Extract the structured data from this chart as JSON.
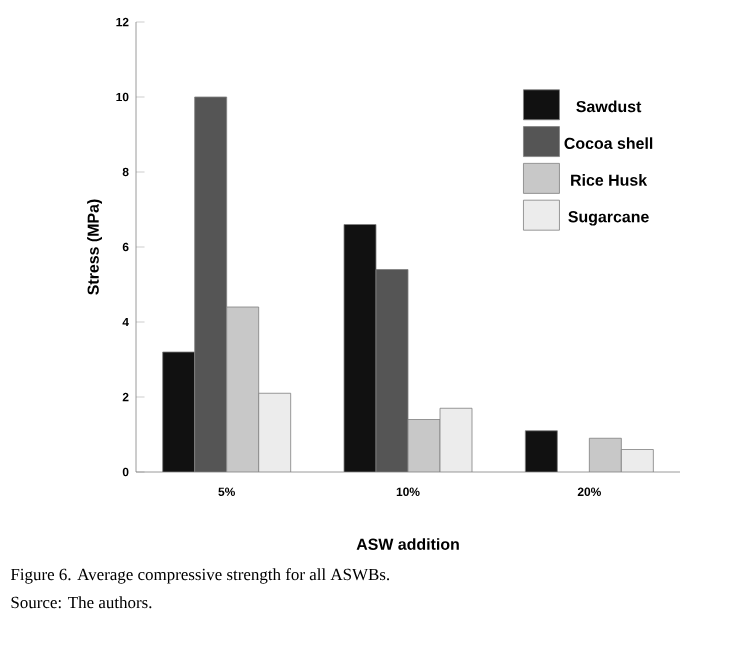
{
  "chart_data": {
    "type": "bar",
    "xlabel": "ASW addition",
    "ylabel": "Stress (MPa)",
    "categories": [
      "5%",
      "10%",
      "20%"
    ],
    "series": [
      {
        "name": "Sawdust",
        "color": "#111111",
        "values": [
          3.2,
          6.6,
          1.1
        ]
      },
      {
        "name": "Cocoa shell",
        "color": "#555555",
        "values": [
          10.0,
          5.4,
          null
        ]
      },
      {
        "name": "Rice Husk",
        "color": "#c8c8c8",
        "values": [
          4.4,
          1.4,
          0.9
        ]
      },
      {
        "name": "Sugarcane",
        "color": "#ececec",
        "values": [
          2.1,
          1.7,
          0.6
        ]
      }
    ],
    "ylim": [
      0,
      12
    ],
    "yticks": [
      0,
      2,
      4,
      6,
      8,
      10,
      12
    ],
    "grid": false,
    "legend": "top right",
    "annotations": [
      "Figure 6. Average compressive strength for all ASWBs.",
      "Source: The authors."
    ]
  }
}
